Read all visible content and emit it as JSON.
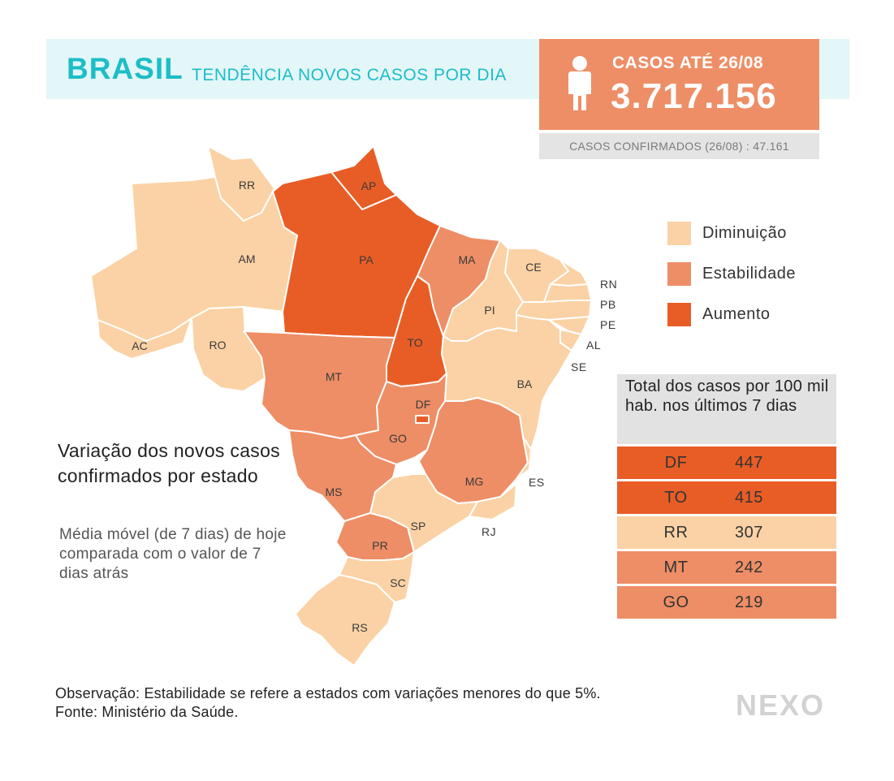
{
  "header": {
    "title": "BRASIL",
    "subtitle": "TENDÊNCIA NOVOS CASOS POR DIA"
  },
  "cases": {
    "label": "CASOS ATÉ 26/08",
    "value": "3.717.156",
    "icon": "person-icon",
    "confirmed_note": "CASOS CONFIRMADOS (26/08) : 47.161"
  },
  "colors": {
    "decrease": "#fbd2a5",
    "stable": "#ee8e66",
    "increase": "#e85d26",
    "accent": "#1dbdc7"
  },
  "legend": [
    {
      "label": "Diminuição",
      "color": "#fbd2a5"
    },
    {
      "label": "Estabilidade",
      "color": "#ee8e66"
    },
    {
      "label": "Aumento",
      "color": "#e85d26"
    }
  ],
  "states": {
    "RR": "Diminuição",
    "AP": "Aumento",
    "AM": "Diminuição",
    "PA": "Aumento",
    "MA": "Estabilidade",
    "CE": "Diminuição",
    "RN": "Diminuição",
    "PB": "Diminuição",
    "PE": "Diminuição",
    "AL": "Diminuição",
    "SE": "Diminuição",
    "PI": "Diminuição",
    "AC": "Diminuição",
    "RO": "Diminuição",
    "TO": "Aumento",
    "BA": "Diminuição",
    "MT": "Estabilidade",
    "DF": "Aumento",
    "GO": "Estabilidade",
    "MG": "Estabilidade",
    "ES": "Diminuição",
    "MS": "Estabilidade",
    "SP": "Diminuição",
    "RJ": "Diminuição",
    "PR": "Estabilidade",
    "SC": "Diminuição",
    "RS": "Diminuição"
  },
  "ranking": {
    "title": "Total dos casos por 100 mil hab. nos últimos 7 dias",
    "rows": [
      {
        "uf": "DF",
        "value": "447",
        "color": "#e85d26"
      },
      {
        "uf": "TO",
        "value": "415",
        "color": "#e85d26"
      },
      {
        "uf": "RR",
        "value": "307",
        "color": "#fbd2a5"
      },
      {
        "uf": "MT",
        "value": "242",
        "color": "#ee8e66"
      },
      {
        "uf": "GO",
        "value": "219",
        "color": "#ee8e66"
      }
    ]
  },
  "variation": {
    "title": "Variação dos novos casos confirmados por estado",
    "description": "Média móvel (de 7 dias) de hoje comparada com o valor de 7 dias atrás"
  },
  "footer": {
    "observation": "Observação: Estabilidade se refere a estados com variações menores do que 5%. Fonte: Ministério da Saúde.",
    "logo": "NEXO"
  }
}
